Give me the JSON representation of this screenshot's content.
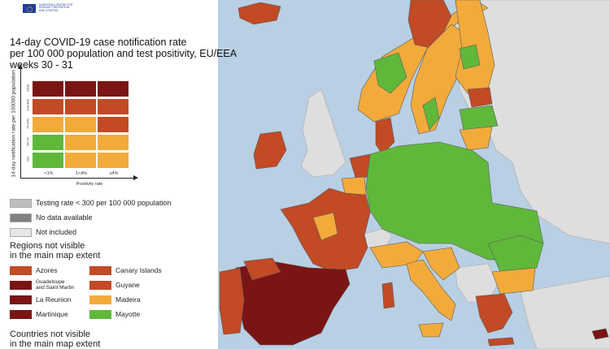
{
  "header": {
    "logo_text": [
      "EUROPEAN CENTRE FOR",
      "DISEASE PREVENTION",
      "AND CONTROL"
    ],
    "title_lines": [
      "14-day COVID-19 case notification rate",
      "per 100 000 population and test positivity, EU/EEA",
      "weeks 30 - 31"
    ]
  },
  "matrix": {
    "y_axis_label": "14-day notification rate per 100000 population",
    "x_axis_label": "Positivity rate",
    "row_labels": [
      "≥500",
      "200-499",
      "75-200",
      "50-74",
      "<50"
    ],
    "col_labels": [
      "<1%",
      "1<4%",
      "≥4%"
    ],
    "cells": [
      [
        "#7b1414",
        "#7b1414",
        "#7b1414"
      ],
      [
        "#c24a25",
        "#c24a25",
        "#c24a25"
      ],
      [
        "#f2ab3b",
        "#f2ab3b",
        "#c24a25"
      ],
      [
        "#5fb83a",
        "#f2ab3b",
        "#f2ab3b"
      ],
      [
        "#5fb83a",
        "#f2ab3b",
        "#f2ab3b"
      ]
    ]
  },
  "legend": {
    "items": [
      {
        "label": "Testing rate < 300 per 100 000 population",
        "color": "#bdbdbd"
      },
      {
        "label": "No data available",
        "color": "#808080"
      },
      {
        "label": "Not included",
        "color": "#e6e6e6"
      }
    ],
    "regions_heading": [
      "Regions not visible",
      "in the main map extent"
    ],
    "regions": [
      {
        "label": "Azores",
        "color": "#c24a25"
      },
      {
        "label": "Canary Islands",
        "color": "#c24a25"
      },
      {
        "label": "Guadeloupe and Saint Martin",
        "label_lines": [
          "Guadeloupe",
          "and Saint Martin"
        ],
        "color": "#7b1414"
      },
      {
        "label": "Guyane",
        "color": "#c24a25"
      },
      {
        "label": "La Reunion",
        "color": "#7b1414"
      },
      {
        "label": "Madeira",
        "color": "#f2ab3b"
      },
      {
        "label": "Martinique",
        "color": "#7b1414"
      },
      {
        "label": "Mayotte",
        "color": "#5fb83a"
      }
    ],
    "countries_heading": [
      "Countries not visible",
      "in the main map extent"
    ]
  },
  "colors": {
    "sea": "#b9cfe3",
    "not_included": "#dedede",
    "green": "#5fb83a",
    "orange": "#f2ab3b",
    "red": "#c24a25",
    "dark_red": "#7b1414",
    "border": "#5a5a5a"
  }
}
